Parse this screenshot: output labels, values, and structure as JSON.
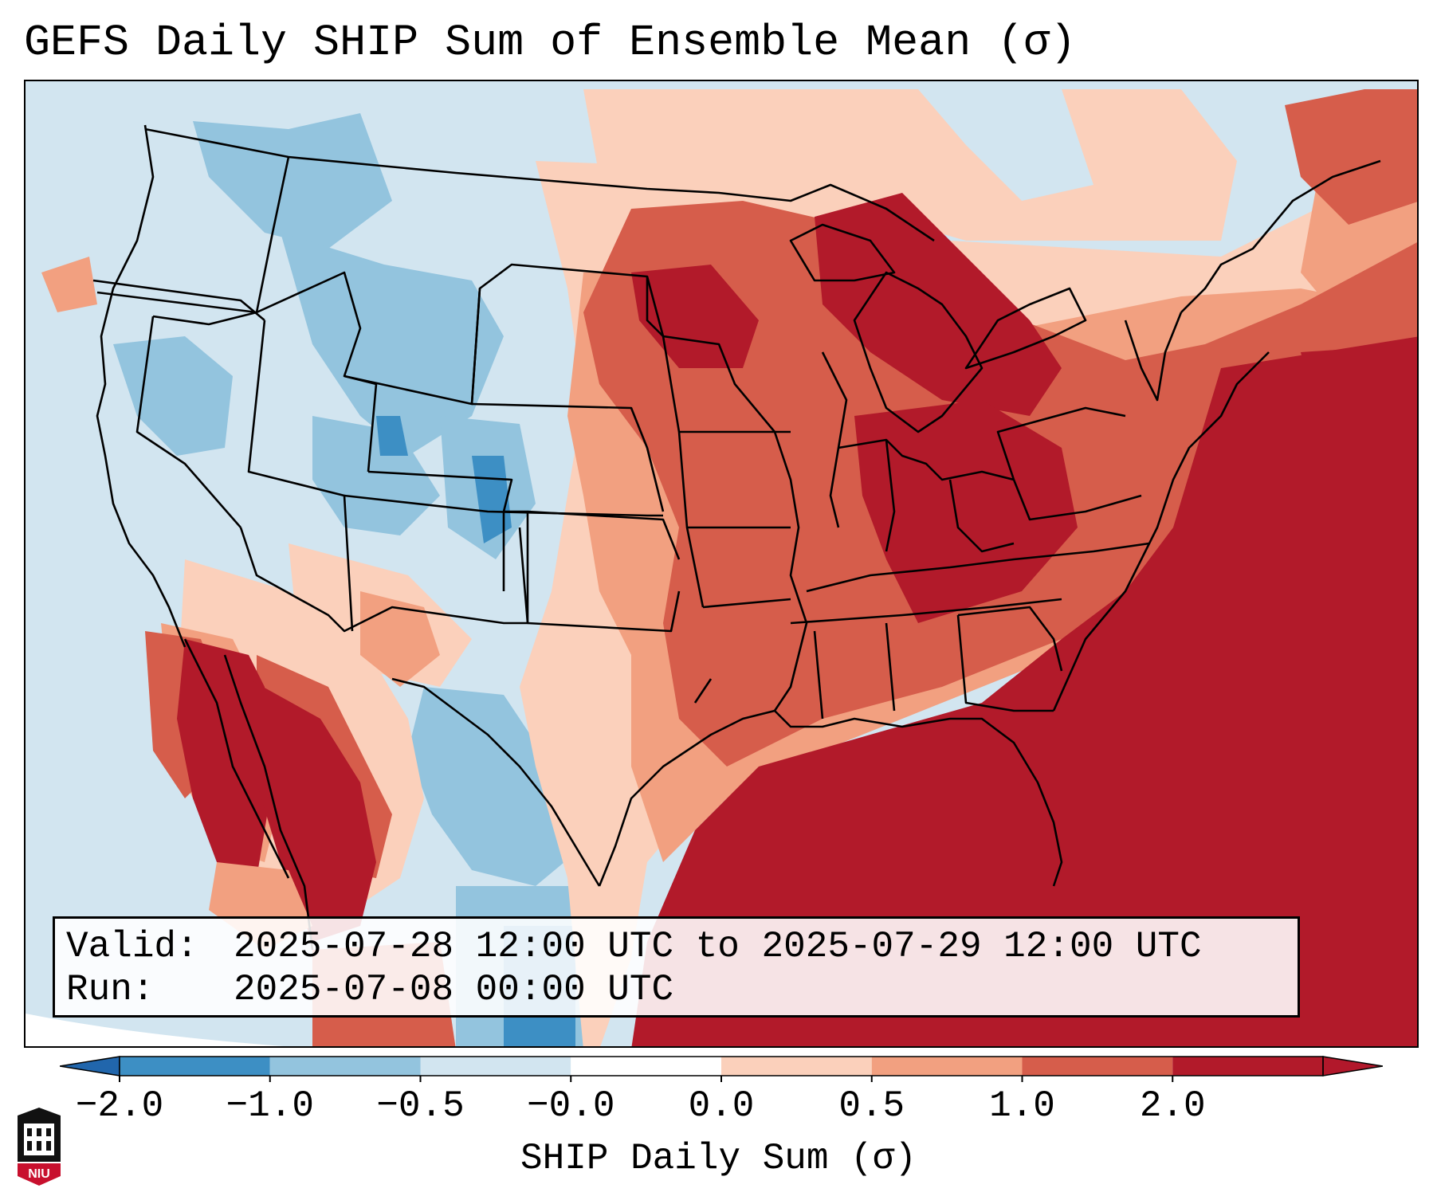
{
  "title": "GEFS Daily SHIP Sum of Ensemble Mean (σ)",
  "info": {
    "valid_label": "Valid:",
    "valid_value": "2025-07-28 12:00 UTC to 2025-07-29 12:00 UTC",
    "run_label": "Run:",
    "run_value": "2025-07-08 00:00 UTC"
  },
  "colorbar": {
    "label": "SHIP Daily Sum (σ)",
    "ticks": [
      "−2.0",
      "−1.0",
      "−0.5",
      "−0.0",
      "0.0",
      "0.5",
      "1.0",
      "2.0"
    ],
    "bins": [
      {
        "color": "#3d8fc4"
      },
      {
        "color": "#93c4de"
      },
      {
        "color": "#d2e5f0"
      },
      {
        "color": "#ffffff"
      },
      {
        "color": "#fbd0bb"
      },
      {
        "color": "#f2a080"
      },
      {
        "color": "#d65d4b"
      },
      {
        "color": "#b21a2a"
      }
    ],
    "under_color": "#2166ac",
    "over_color": "#b2182b"
  },
  "logo": {
    "text": "NIU",
    "color": "#c8102e"
  }
}
